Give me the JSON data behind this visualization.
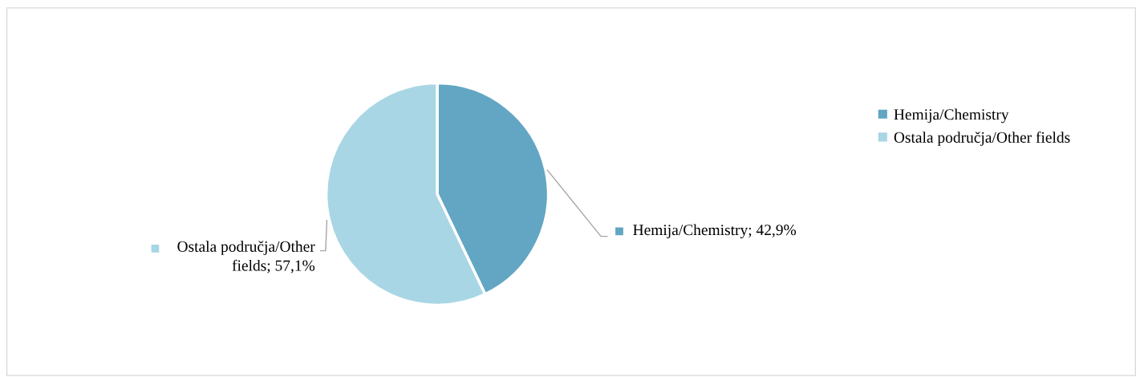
{
  "chart_data": {
    "type": "pie",
    "categories": [
      "Hemija/Chemistry",
      "Ostala područja/Other fields"
    ],
    "values": [
      42.9,
      57.1
    ],
    "colors": [
      "#62a6c4",
      "#a9d6e4"
    ],
    "value_labels": [
      "Hemija/Chemistry; 42,9%",
      "Ostala područja/Other\nfields; 57,1%"
    ],
    "legend": "right"
  }
}
